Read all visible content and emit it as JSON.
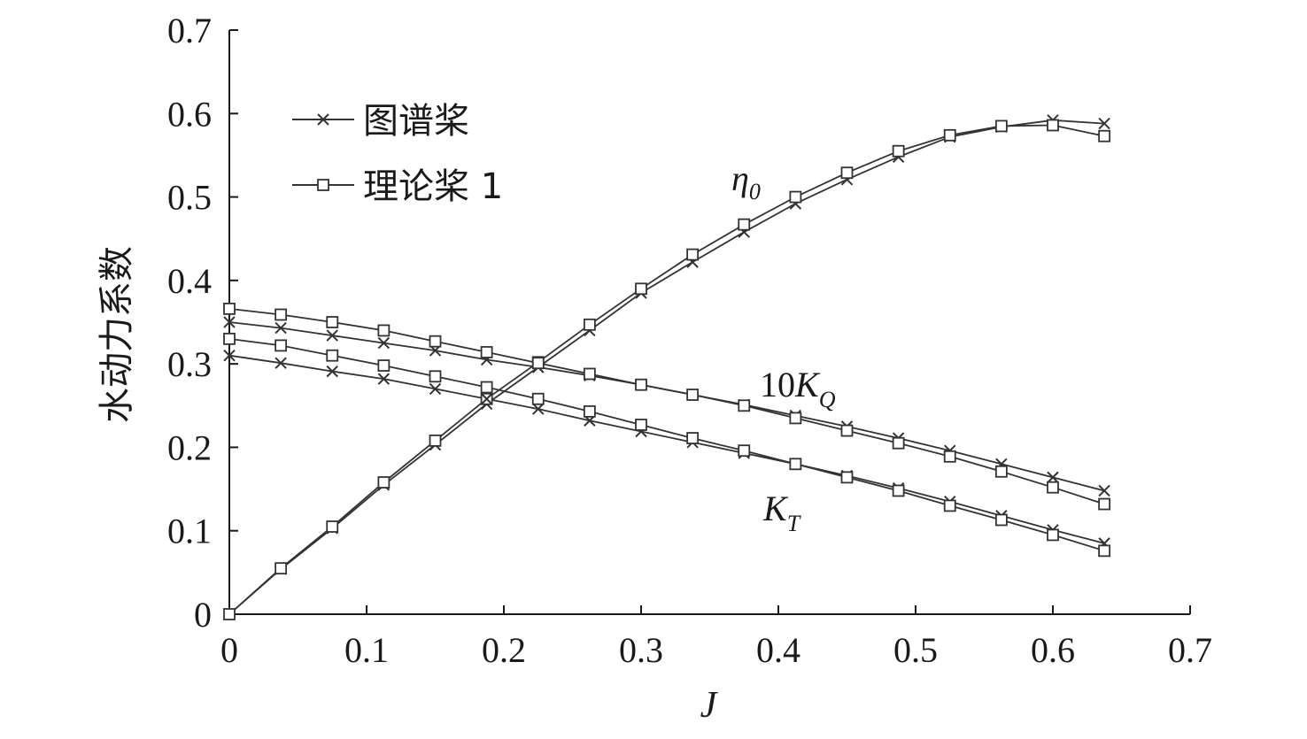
{
  "chart_data": {
    "type": "line",
    "title": "",
    "xlabel": "J",
    "ylabel": "水动力系数",
    "xlim": [
      0,
      0.7
    ],
    "ylim": [
      0,
      0.7
    ],
    "x_ticks": [
      "0",
      "0.1",
      "0.2",
      "0.3",
      "0.4",
      "0.5",
      "0.6",
      "0.7"
    ],
    "y_ticks": [
      "0",
      "0.1",
      "0.2",
      "0.3",
      "0.4",
      "0.5",
      "0.6",
      "0.7"
    ],
    "grid": false,
    "legend_position": "top-left",
    "legend": [
      {
        "label": "图谱桨",
        "marker": "x"
      },
      {
        "label": "理论桨 1",
        "marker": "square"
      }
    ],
    "annotations": {
      "eta": {
        "main": "η",
        "sub": "0"
      },
      "kq": {
        "prefix": "10",
        "main": "K",
        "sub": "Q"
      },
      "kt": {
        "main": "K",
        "sub": "T"
      }
    },
    "x": [
      0,
      0.0375,
      0.075,
      0.1125,
      0.15,
      0.1875,
      0.225,
      0.2625,
      0.3,
      0.3375,
      0.375,
      0.4125,
      0.45,
      0.4875,
      0.525,
      0.5625,
      0.6,
      0.6375
    ],
    "series": [
      {
        "curve": "eta0",
        "marker": "x",
        "values": [
          0,
          0.054,
          0.103,
          0.155,
          0.203,
          0.252,
          0.296,
          0.34,
          0.385,
          0.422,
          0.458,
          0.492,
          0.521,
          0.548,
          0.572,
          0.584,
          0.592,
          0.588
        ]
      },
      {
        "curve": "eta0",
        "marker": "square",
        "values": [
          0,
          0.055,
          0.105,
          0.158,
          0.208,
          0.258,
          0.302,
          0.347,
          0.39,
          0.431,
          0.467,
          0.5,
          0.529,
          0.555,
          0.574,
          0.585,
          0.586,
          0.573
        ]
      },
      {
        "curve": "10KQ",
        "marker": "x",
        "values": [
          0.35,
          0.343,
          0.334,
          0.325,
          0.316,
          0.305,
          0.296,
          0.286,
          0.275,
          0.263,
          0.251,
          0.238,
          0.225,
          0.211,
          0.196,
          0.18,
          0.164,
          0.148
        ]
      },
      {
        "curve": "10KQ",
        "marker": "square",
        "values": [
          0.366,
          0.359,
          0.35,
          0.34,
          0.327,
          0.314,
          0.301,
          0.288,
          0.275,
          0.263,
          0.25,
          0.235,
          0.22,
          0.205,
          0.189,
          0.171,
          0.152,
          0.132
        ]
      },
      {
        "curve": "KT",
        "marker": "x",
        "values": [
          0.31,
          0.301,
          0.291,
          0.282,
          0.27,
          0.258,
          0.246,
          0.232,
          0.219,
          0.206,
          0.193,
          0.18,
          0.166,
          0.151,
          0.135,
          0.118,
          0.101,
          0.085
        ]
      },
      {
        "curve": "KT",
        "marker": "square",
        "values": [
          0.33,
          0.322,
          0.31,
          0.298,
          0.285,
          0.272,
          0.258,
          0.243,
          0.227,
          0.211,
          0.196,
          0.18,
          0.164,
          0.148,
          0.13,
          0.113,
          0.095,
          0.076
        ]
      }
    ]
  }
}
